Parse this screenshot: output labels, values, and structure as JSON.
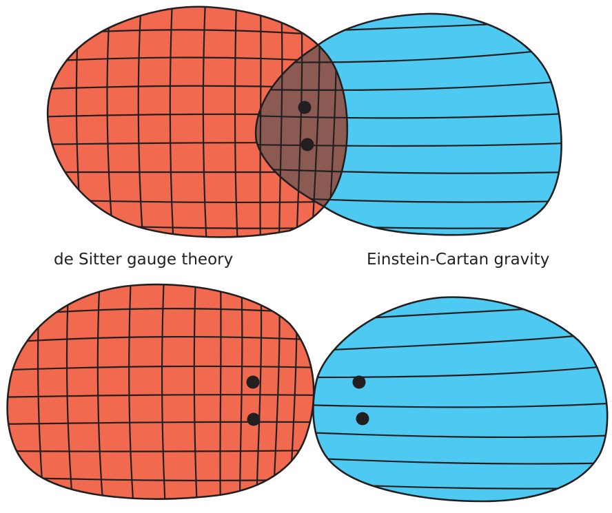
{
  "labels": {
    "left": "de Sitter gauge theory",
    "right": "Einstein-Cartan gravity"
  },
  "colors": {
    "gauge_region": "#f16a50",
    "gravity_region": "#4dc9f2",
    "overlap_region": "#8b5a52",
    "line": "#231f20"
  }
}
